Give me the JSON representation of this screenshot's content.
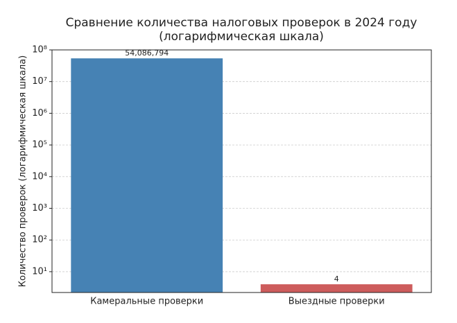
{
  "chart_data": {
    "type": "bar",
    "title": [
      "Сравнение количества налоговых проверок в 2024 году",
      "(логарифмическая шкала)"
    ],
    "y_label": "Количество проверок (логарифмическая шкала)",
    "categories": [
      "Камеральные проверки",
      "Выездные проверки"
    ],
    "values": [
      54086794,
      4
    ],
    "value_labels": [
      "54,086,794",
      "4"
    ],
    "colors": [
      "#4682b4",
      "#cd5c5c"
    ],
    "log_scale": true,
    "ylim": [
      2.2,
      100000000
    ],
    "yticks": [
      {
        "value": 10,
        "label": "10¹"
      },
      {
        "value": 100,
        "label": "10²"
      },
      {
        "value": 1000,
        "label": "10³"
      },
      {
        "value": 10000,
        "label": "10⁴"
      },
      {
        "value": 100000,
        "label": "10⁵"
      },
      {
        "value": 1000000,
        "label": "10⁶"
      },
      {
        "value": 10000000,
        "label": "10⁷"
      },
      {
        "value": 100000000,
        "label": "10⁸"
      }
    ],
    "grid": true
  }
}
